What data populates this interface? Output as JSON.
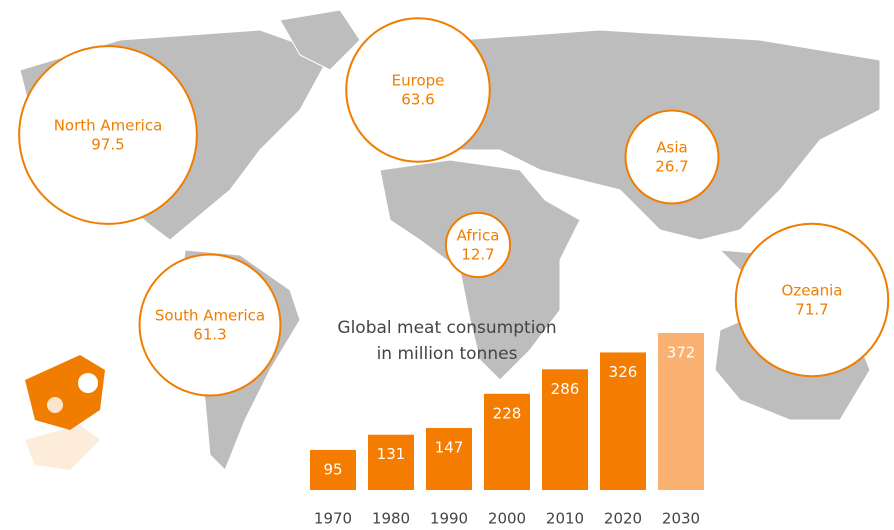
{
  "chart_data": [
    {
      "type": "bubble",
      "categories": [
        "North America",
        "Europe",
        "Asia",
        "Africa",
        "Ozeania",
        "South America"
      ],
      "values": [
        97.5,
        63.6,
        26.7,
        12.7,
        71.7,
        61.3
      ],
      "color": "#f07d00"
    },
    {
      "type": "bar",
      "title": "Global meat consumption",
      "subtitle": "in million tonnes",
      "categories": [
        "1970",
        "1980",
        "1990",
        "2000",
        "2010",
        "2020",
        "2030"
      ],
      "values": [
        95,
        131,
        147,
        228,
        286,
        326,
        372
      ],
      "colors": [
        "#f47c00",
        "#f47c00",
        "#f47c00",
        "#f47c00",
        "#f47c00",
        "#f47c00",
        "#f9b070"
      ]
    }
  ]
}
